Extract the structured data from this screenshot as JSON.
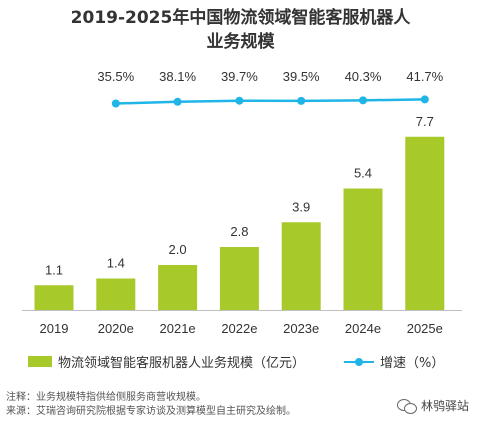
{
  "title_line1": "2019-2025年中国物流领域智能客服机器人",
  "title_line2": "业务规模",
  "chart_data": {
    "type": "bar",
    "categories": [
      "2019",
      "2020e",
      "2021e",
      "2022e",
      "2023e",
      "2024e",
      "2025e"
    ],
    "series": [
      {
        "name": "物流领域智能客服机器人业务规模（亿元）",
        "type": "bar",
        "values": [
          1.1,
          1.4,
          2.0,
          2.8,
          3.9,
          5.4,
          7.7
        ],
        "labels": [
          "1.1",
          "1.4",
          "2.0",
          "2.8",
          "3.9",
          "5.4",
          "7.7"
        ],
        "color": "#a8c92a"
      },
      {
        "name": "增速（%）",
        "type": "line",
        "values": [
          35.5,
          38.1,
          39.7,
          39.5,
          40.3,
          41.7
        ],
        "labels": [
          "35.5%",
          "38.1%",
          "39.7%",
          "39.5%",
          "40.3%",
          "41.7%"
        ],
        "x": [
          "2020e",
          "2021e",
          "2022e",
          "2023e",
          "2024e",
          "2025e"
        ],
        "color": "#1fb5e6"
      }
    ],
    "ylim_bar": [
      0,
      9
    ],
    "ylim_line": [
      0,
      60
    ],
    "legend_position": "bottom"
  },
  "legend": {
    "bar_label": "物流领域智能客服机器人业务规模（亿元）",
    "line_label": "增速（%）"
  },
  "footer": {
    "note": "注释：业务规模特指供给侧服务商营收规模。",
    "source": "来源：艾瑞咨询研究院根据专家访谈及测算模型自主研究及绘制。"
  },
  "watermark": {
    "icon": "wechat-icon",
    "text": "林鸮驿站"
  }
}
